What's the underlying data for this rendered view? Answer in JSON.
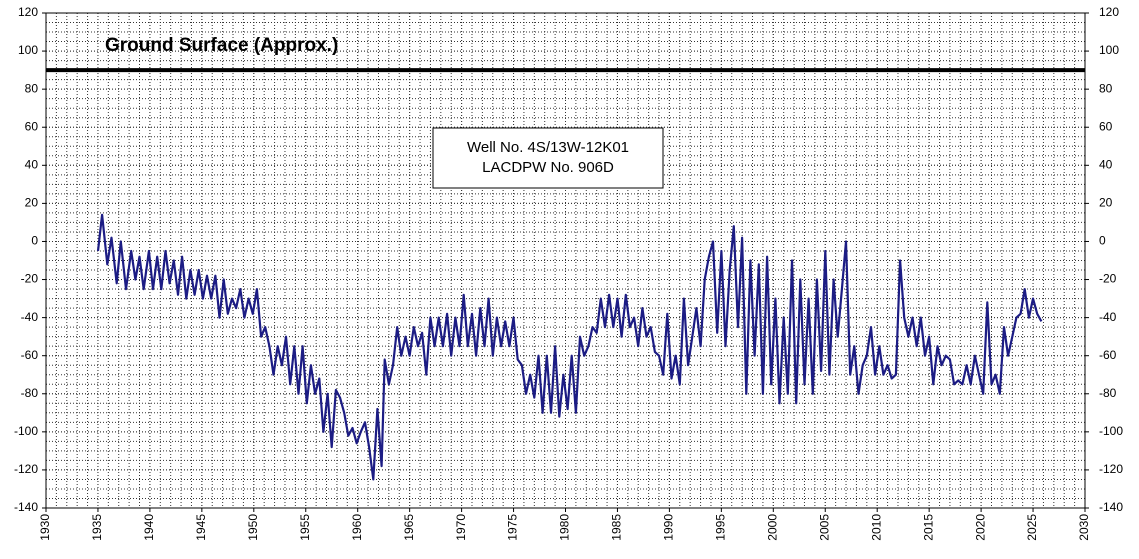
{
  "chart_data": {
    "type": "line",
    "reference_line": {
      "value": 90,
      "label": "Ground Surface (Approx.)"
    },
    "annotation": [
      "Well No. 4S/13W-12K01",
      "LACDPW No. 906D"
    ],
    "xlim": [
      1930,
      2030
    ],
    "xticks": [
      1930,
      1935,
      1940,
      1945,
      1950,
      1955,
      1960,
      1965,
      1970,
      1975,
      1980,
      1985,
      1990,
      1995,
      2000,
      2005,
      2010,
      2015,
      2020,
      2025,
      2030
    ],
    "ylim": [
      -140,
      120
    ],
    "yticks": [
      -140,
      -120,
      -100,
      -80,
      -60,
      -40,
      -20,
      0,
      20,
      40,
      60,
      80,
      100,
      120
    ],
    "grid": true,
    "minor_grid": {
      "x": 1,
      "y": 5
    },
    "mirror_y_axis": true,
    "x": [
      1935.0,
      1935.4,
      1935.9,
      1936.3,
      1936.8,
      1937.2,
      1937.7,
      1938.2,
      1938.6,
      1939.0,
      1939.4,
      1939.9,
      1940.3,
      1940.7,
      1941.1,
      1941.5,
      1941.9,
      1942.3,
      1942.7,
      1943.1,
      1943.5,
      1943.9,
      1944.3,
      1944.7,
      1945.1,
      1945.5,
      1945.9,
      1946.3,
      1946.7,
      1947.1,
      1947.5,
      1947.9,
      1948.3,
      1948.7,
      1949.1,
      1949.5,
      1949.9,
      1950.3,
      1950.7,
      1951.1,
      1951.5,
      1951.9,
      1952.3,
      1952.7,
      1953.1,
      1953.5,
      1953.9,
      1954.3,
      1954.7,
      1955.1,
      1955.5,
      1955.9,
      1956.3,
      1956.7,
      1957.1,
      1957.5,
      1957.9,
      1958.3,
      1958.7,
      1959.1,
      1959.5,
      1959.9,
      1960.3,
      1960.7,
      1961.1,
      1961.5,
      1961.9,
      1962.3,
      1962.6,
      1963.0,
      1963.4,
      1963.8,
      1964.2,
      1964.6,
      1965.0,
      1965.4,
      1965.8,
      1966.2,
      1966.6,
      1967.0,
      1967.4,
      1967.8,
      1968.2,
      1968.6,
      1969.0,
      1969.4,
      1969.8,
      1970.2,
      1970.6,
      1971.0,
      1971.4,
      1971.8,
      1972.2,
      1972.6,
      1973.0,
      1973.4,
      1973.8,
      1974.2,
      1974.6,
      1975.0,
      1975.4,
      1975.8,
      1976.2,
      1976.6,
      1977.0,
      1977.4,
      1977.8,
      1978.2,
      1978.6,
      1979.0,
      1979.4,
      1979.8,
      1980.2,
      1980.6,
      1981.0,
      1981.4,
      1981.8,
      1982.2,
      1982.6,
      1983.0,
      1983.4,
      1983.8,
      1984.2,
      1984.6,
      1985.0,
      1985.4,
      1985.8,
      1986.2,
      1986.6,
      1987.0,
      1987.4,
      1987.8,
      1988.2,
      1988.6,
      1989.0,
      1989.4,
      1989.8,
      1990.2,
      1990.6,
      1991.0,
      1991.4,
      1991.8,
      1992.2,
      1992.6,
      1993.0,
      1993.4,
      1993.8,
      1994.2,
      1994.6,
      1995.0,
      1995.4,
      1995.8,
      1996.2,
      1996.6,
      1997.0,
      1997.4,
      1997.8,
      1998.2,
      1998.6,
      1999.0,
      1999.4,
      1999.8,
      2000.2,
      2000.6,
      2001.0,
      2001.4,
      2001.8,
      2002.2,
      2002.6,
      2003.0,
      2003.4,
      2003.8,
      2004.2,
      2004.6,
      2005.0,
      2005.4,
      2005.8,
      2006.2,
      2006.6,
      2007.0,
      2007.4,
      2007.8,
      2008.2,
      2008.6,
      2009.0,
      2009.4,
      2009.8,
      2010.2,
      2010.6,
      2011.0,
      2011.4,
      2011.8,
      2012.2,
      2012.6,
      2013.0,
      2013.4,
      2013.8,
      2014.2,
      2014.6,
      2015.0,
      2015.4,
      2015.8,
      2016.2,
      2016.6,
      2017.0,
      2017.4,
      2017.8,
      2018.2,
      2018.6,
      2019.0,
      2019.4,
      2019.8,
      2020.2,
      2020.6,
      2021.0,
      2021.4,
      2021.8,
      2022.2,
      2022.6,
      2023.0,
      2023.4,
      2023.8,
      2024.2,
      2024.6,
      2025.0,
      2025.4,
      2025.8
    ],
    "series": [
      {
        "color": "#1c1c84",
        "values": [
          -5,
          14,
          -12,
          2,
          -22,
          0,
          -25,
          -5,
          -20,
          -8,
          -25,
          -5,
          -25,
          -8,
          -25,
          -5,
          -22,
          -10,
          -28,
          -8,
          -30,
          -15,
          -28,
          -15,
          -30,
          -18,
          -30,
          -18,
          -40,
          -20,
          -38,
          -30,
          -35,
          -25,
          -40,
          -30,
          -38,
          -25,
          -50,
          -45,
          -55,
          -70,
          -55,
          -65,
          -50,
          -75,
          -55,
          -80,
          -55,
          -85,
          -65,
          -80,
          -72,
          -100,
          -80,
          -108,
          -78,
          -82,
          -90,
          -102,
          -98,
          -106,
          -100,
          -95,
          -108,
          -125,
          -88,
          -118,
          -62,
          -75,
          -65,
          -45,
          -60,
          -50,
          -60,
          -45,
          -55,
          -48,
          -70,
          -40,
          -55,
          -40,
          -55,
          -38,
          -60,
          -40,
          -55,
          -28,
          -55,
          -38,
          -60,
          -35,
          -55,
          -30,
          -60,
          -40,
          -55,
          -42,
          -55,
          -40,
          -62,
          -65,
          -80,
          -70,
          -82,
          -60,
          -90,
          -60,
          -90,
          -55,
          -92,
          -70,
          -88,
          -60,
          -90,
          -50,
          -60,
          -55,
          -45,
          -48,
          -30,
          -45,
          -28,
          -45,
          -30,
          -50,
          -28,
          -45,
          -40,
          -55,
          -35,
          -50,
          -45,
          -58,
          -60,
          -70,
          -38,
          -72,
          -60,
          -75,
          -30,
          -65,
          -50,
          -35,
          -55,
          -20,
          -8,
          0,
          -48,
          -5,
          -55,
          -15,
          8,
          -45,
          2,
          -80,
          -10,
          -60,
          -12,
          -80,
          -8,
          -75,
          -30,
          -85,
          -40,
          -80,
          -10,
          -85,
          -20,
          -75,
          -30,
          -80,
          -20,
          -68,
          -5,
          -70,
          -20,
          -50,
          -25,
          0,
          -70,
          -55,
          -80,
          -65,
          -60,
          -45,
          -70,
          -55,
          -70,
          -65,
          -72,
          -70,
          -10,
          -40,
          -50,
          -40,
          -55,
          -40,
          -60,
          -50,
          -75,
          -55,
          -65,
          -60,
          -62,
          -75,
          -73,
          -75,
          -65,
          -75,
          -60,
          -70,
          -80,
          -32,
          -75,
          -70,
          -80,
          -45,
          -60,
          -50,
          -40,
          -38,
          -25,
          -40,
          -30,
          -38,
          -42
        ]
      }
    ]
  }
}
